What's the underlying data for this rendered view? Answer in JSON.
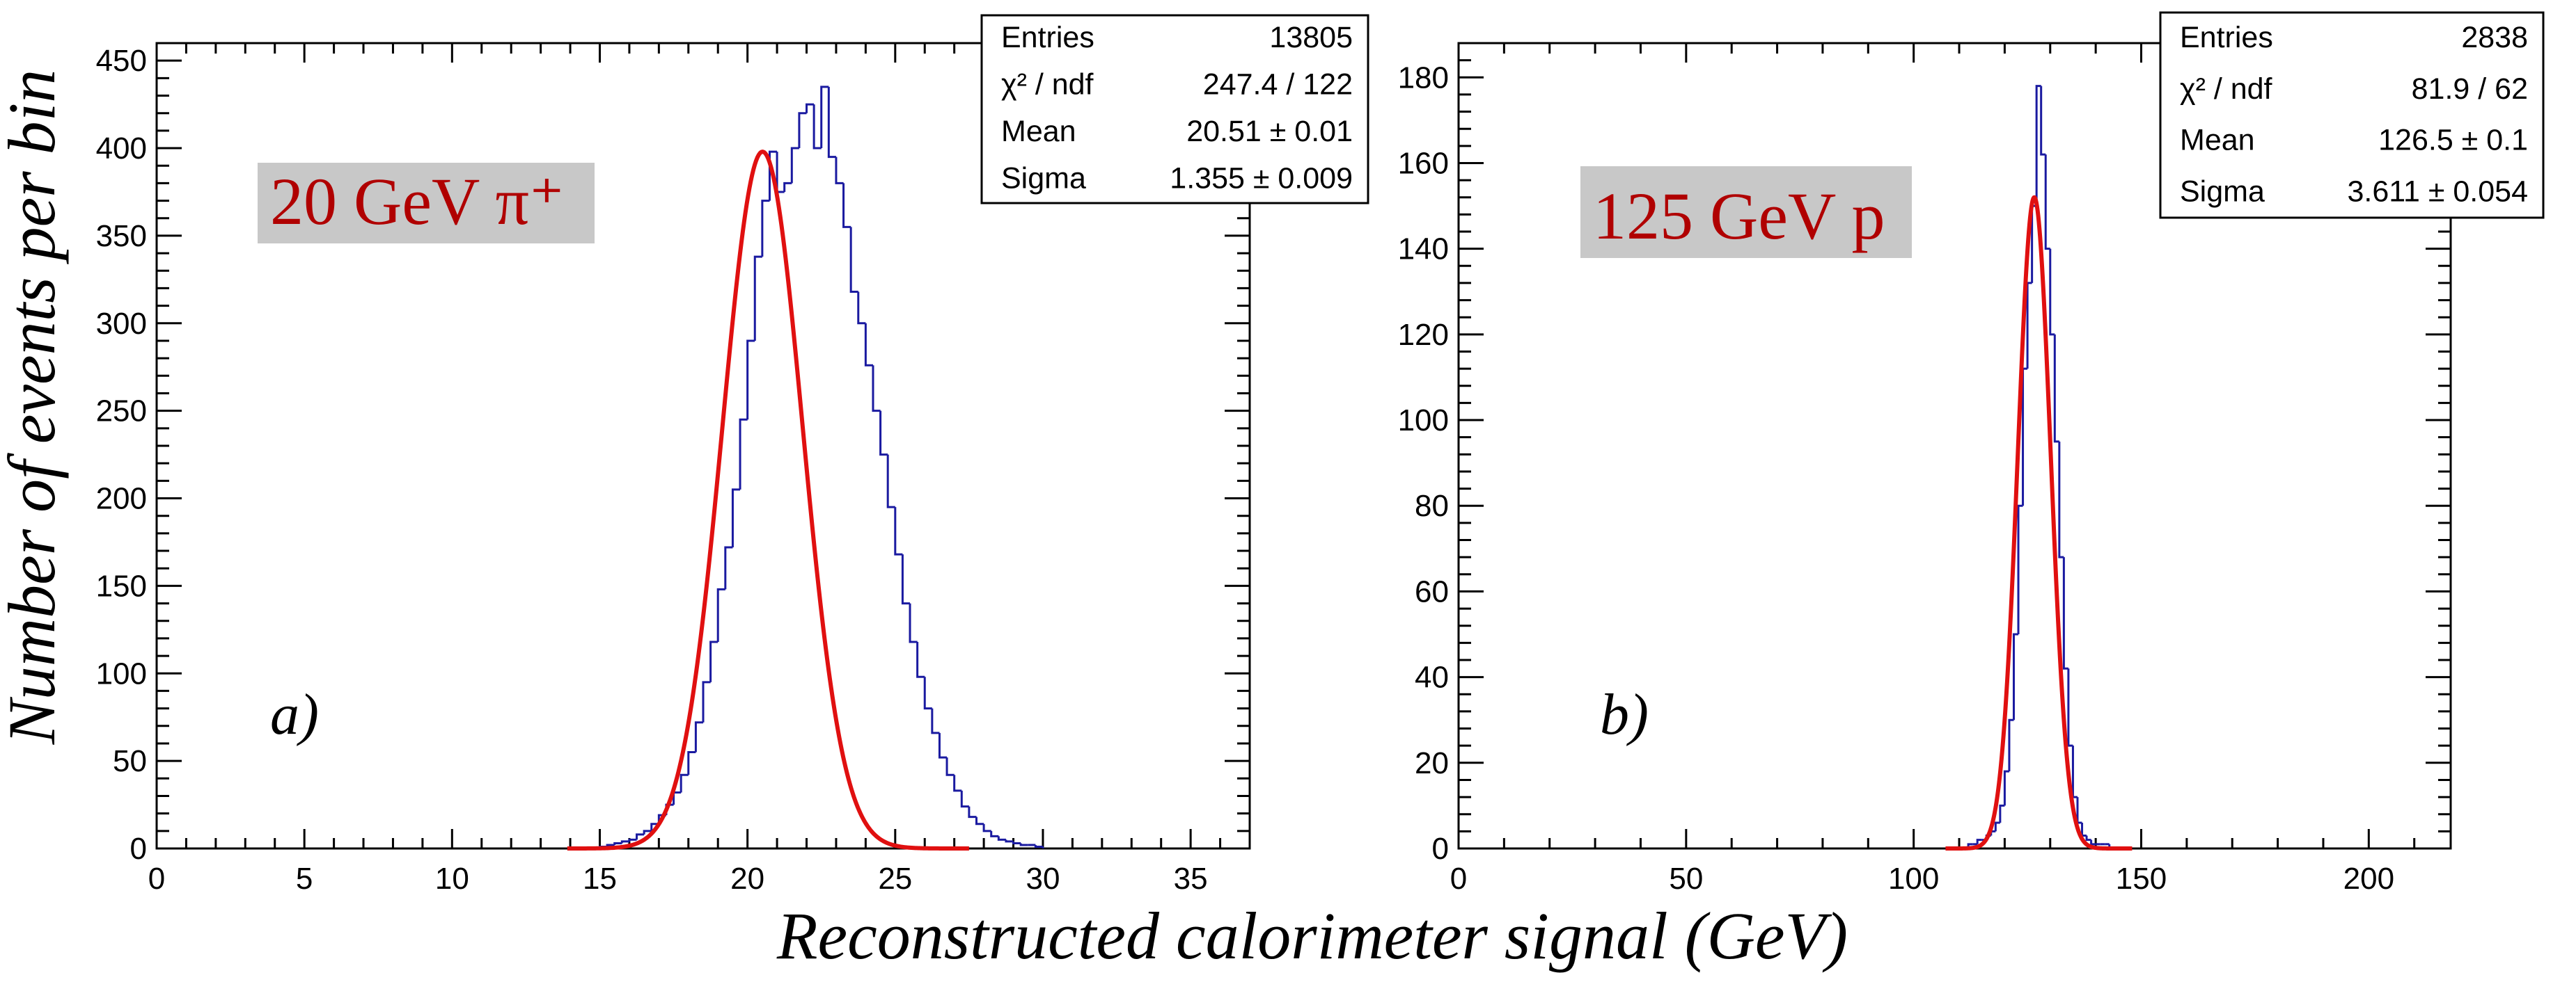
{
  "figure": {
    "ylabel": "Number of events per bin",
    "xlabel": "Reconstructed calorimeter signal (GeV)"
  },
  "colors": {
    "histogram": "#1a1aa0",
    "fit": "#e01010",
    "annotation_text": "#b00000",
    "annotation_bg": "#c8c8c8"
  },
  "chart_data": [
    {
      "type": "histogram",
      "panel": "a)",
      "annotation": "20 GeV π⁺",
      "xlim": [
        0,
        37
      ],
      "ylim": [
        0,
        460
      ],
      "xticks": [
        0,
        5,
        10,
        15,
        20,
        25,
        30,
        35
      ],
      "yticks": [
        0,
        50,
        100,
        150,
        200,
        250,
        300,
        350,
        400,
        450
      ],
      "bin_width": 0.25,
      "stats": [
        {
          "label": "Entries",
          "value": "13805"
        },
        {
          "label": "χ² / ndf",
          "value": "247.4 / 122"
        },
        {
          "label": "Mean",
          "value": "20.51 ± 0.01"
        },
        {
          "label": "Sigma",
          "value": "1.355 ± 0.009"
        }
      ],
      "histogram": {
        "x_start": 15.0,
        "counts": [
          1,
          2,
          3,
          4,
          5,
          8,
          10,
          14,
          19,
          25,
          32,
          42,
          55,
          72,
          95,
          118,
          148,
          172,
          205,
          245,
          290,
          338,
          370,
          398,
          375,
          380,
          400,
          420,
          425,
          400,
          435,
          395,
          380,
          355,
          318,
          300,
          276,
          250,
          225,
          195,
          168,
          140,
          118,
          98,
          80,
          66,
          52,
          42,
          33,
          24,
          18,
          14,
          10,
          7,
          5,
          4,
          3,
          2,
          2,
          1
        ]
      },
      "fit": {
        "amplitude": 398,
        "mean": 20.51,
        "sigma": 1.355,
        "range": [
          13.9,
          27.5
        ]
      }
    },
    {
      "type": "histogram",
      "panel": "b)",
      "annotation": "125 GeV p",
      "xlim": [
        0,
        218
      ],
      "ylim": [
        0,
        188
      ],
      "xticks": [
        0,
        50,
        100,
        150,
        200
      ],
      "yticks": [
        0,
        20,
        40,
        60,
        80,
        100,
        120,
        140,
        160,
        180
      ],
      "bin_width": 1,
      "stats": [
        {
          "label": "Entries",
          "value": "2838"
        },
        {
          "label": "χ² / ndf",
          "value": "81.9 / 62"
        },
        {
          "label": "Mean",
          "value": "126.5 ± 0.1"
        },
        {
          "label": "Sigma",
          "value": "3.611 ± 0.054"
        }
      ],
      "histogram": {
        "x_start": 112,
        "counts": [
          1,
          1,
          2,
          2,
          3,
          4,
          6,
          10,
          18,
          30,
          50,
          80,
          112,
          132,
          150,
          178,
          162,
          140,
          120,
          95,
          68,
          42,
          24,
          12,
          6,
          3,
          2,
          1,
          1,
          1,
          1
        ]
      },
      "fit": {
        "amplitude": 152,
        "mean": 126.5,
        "sigma": 3.611,
        "range": [
          107,
          148
        ]
      }
    }
  ]
}
